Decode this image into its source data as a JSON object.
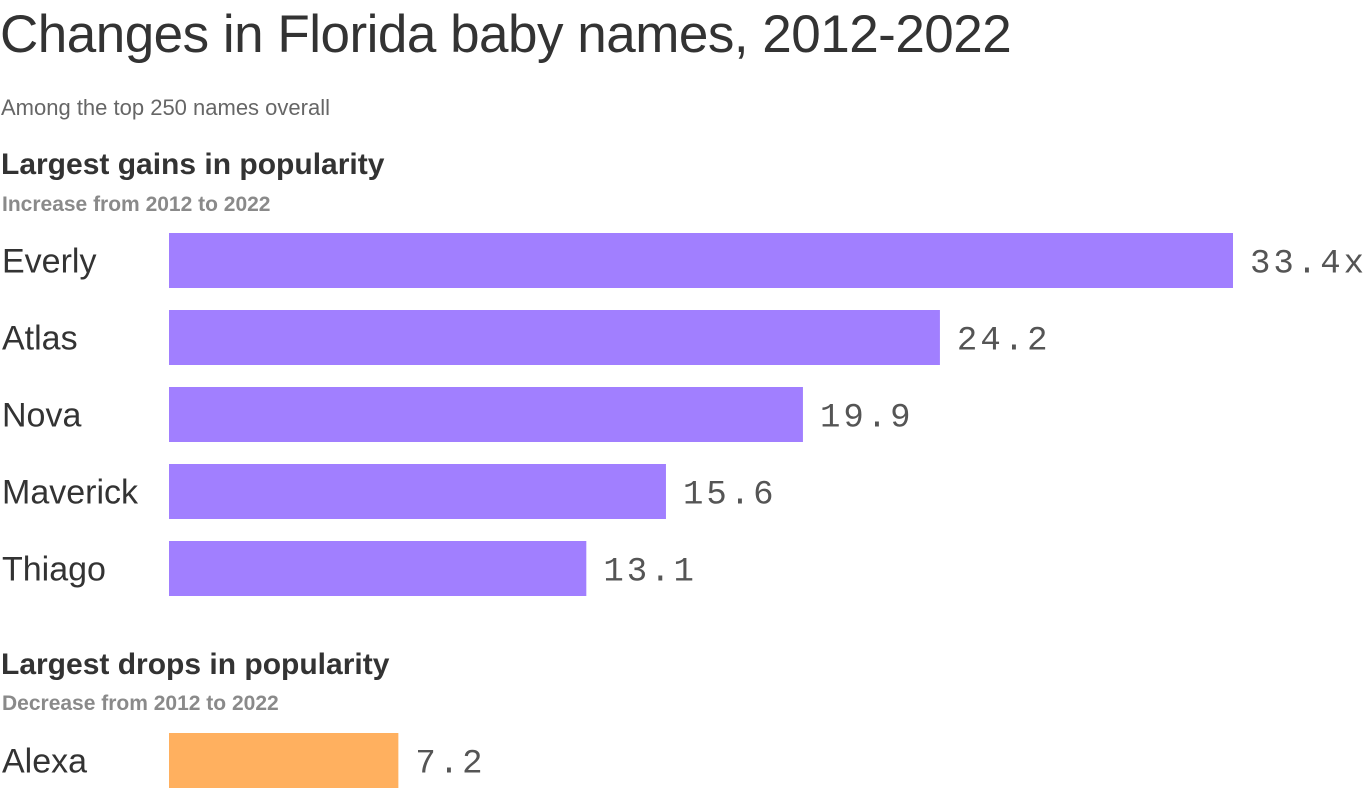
{
  "title": "Changes in Florida baby names, 2012-2022",
  "subtitle": "Among the top 250 names overall",
  "colors": {
    "gains_bar": "#a17fff",
    "drops_bar": "#ffb05f",
    "text": "#333333",
    "muted": "#8a8a8a"
  },
  "chart_data": [
    {
      "type": "bar",
      "orientation": "horizontal",
      "title": "Largest gains in popularity",
      "subtitle": "Increase from 2012 to 2022",
      "categories": [
        "Everly",
        "Atlas",
        "Nova",
        "Maverick",
        "Thiago"
      ],
      "values": [
        33.4,
        24.2,
        19.9,
        15.6,
        13.1
      ],
      "value_labels": [
        "33.4x",
        "24.2",
        "19.9",
        "15.6",
        "13.1"
      ],
      "xlim": [
        0,
        33.4
      ],
      "grid": false,
      "legend": "none"
    },
    {
      "type": "bar",
      "orientation": "horizontal",
      "title": "Largest drops in popularity",
      "subtitle": "Decrease from 2012 to 2022",
      "categories": [
        "Alexa"
      ],
      "values": [
        7.2
      ],
      "value_labels": [
        "7.2"
      ],
      "xlim": [
        0,
        33.4
      ],
      "grid": false,
      "legend": "none"
    }
  ]
}
